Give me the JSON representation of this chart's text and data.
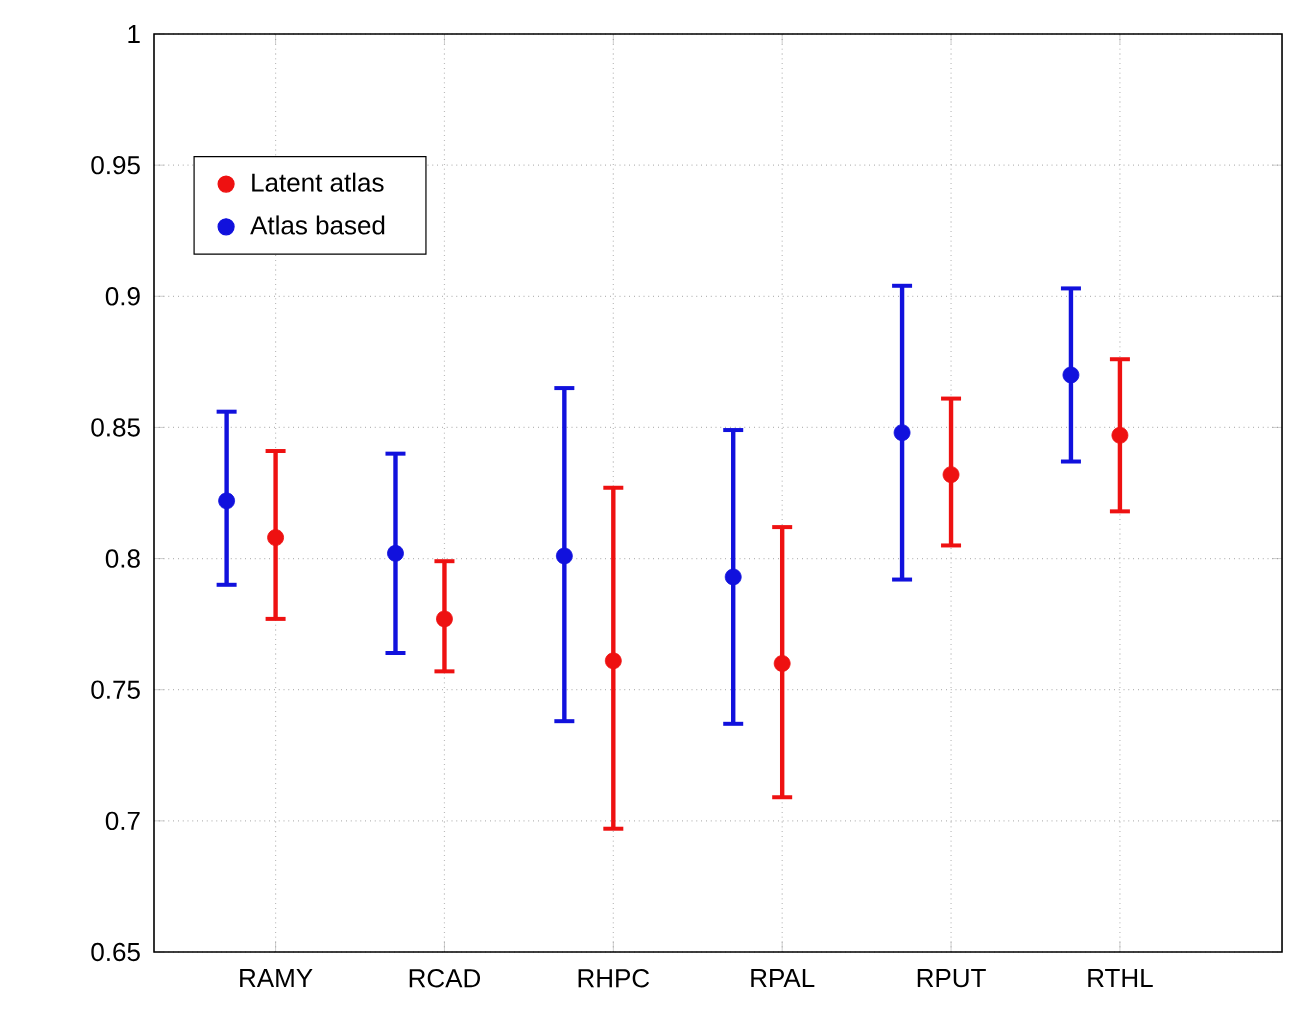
{
  "chart_data": {
    "type": "scatter",
    "categories": [
      "RAMY",
      "RCAD",
      "RHPC",
      "RPAL",
      "RPUT",
      "RTHL"
    ],
    "series": [
      {
        "name": "Latent atlas",
        "color": "#ee1111",
        "values": [
          0.808,
          0.777,
          0.761,
          0.76,
          0.832,
          0.847
        ],
        "errors": [
          [
            0.777,
            0.841
          ],
          [
            0.757,
            0.799
          ],
          [
            0.697,
            0.827
          ],
          [
            0.709,
            0.812
          ],
          [
            0.805,
            0.861
          ],
          [
            0.818,
            0.876
          ]
        ]
      },
      {
        "name": "Atlas based",
        "color": "#1111dd",
        "values": [
          0.822,
          0.802,
          0.801,
          0.793,
          0.848,
          0.87
        ],
        "errors": [
          [
            0.79,
            0.856
          ],
          [
            0.764,
            0.84
          ],
          [
            0.738,
            0.865
          ],
          [
            0.737,
            0.849
          ],
          [
            0.792,
            0.904
          ],
          [
            0.837,
            0.903
          ]
        ]
      }
    ],
    "ylim": [
      0.65,
      1
    ],
    "yticks": [
      0.65,
      0.7,
      0.75,
      0.8,
      0.85,
      0.9,
      0.95,
      1
    ],
    "grid": true,
    "legend": "top left",
    "marker": "circle"
  }
}
